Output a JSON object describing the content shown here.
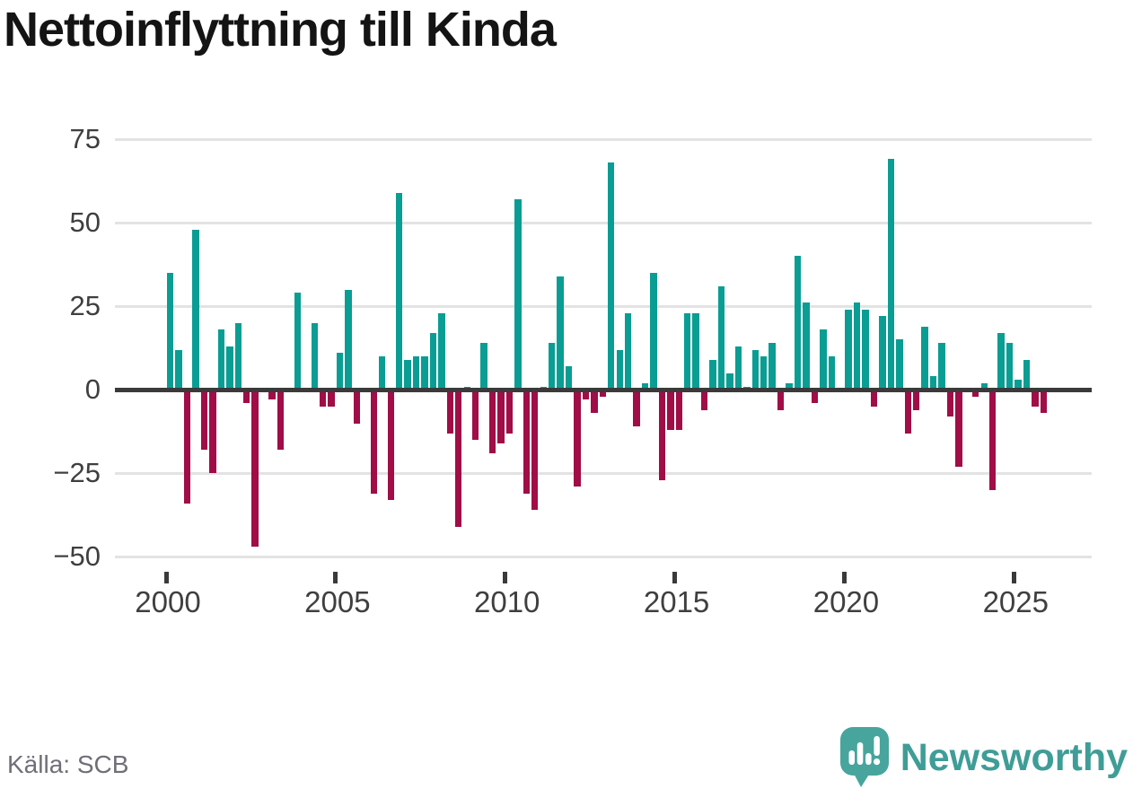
{
  "title": "Nettoinflyttning till Kinda",
  "source": "Källa: SCB",
  "branding": {
    "name": "Newsworthy",
    "icon": "newsworthy-logo-icon",
    "icon_color": "#47a59d",
    "text_color": "#3f9d97"
  },
  "chart_data": {
    "type": "bar",
    "title": "Nettoinflyttning till Kinda",
    "frequency": "quarterly",
    "grid": true,
    "legend": false,
    "xlabel": "",
    "ylabel": "",
    "ylim": [
      -50,
      75
    ],
    "y_ticks": [
      75,
      50,
      25,
      0,
      -25,
      -50
    ],
    "y_tick_labels": [
      "75",
      "50",
      "25",
      "0",
      "−25",
      "−50"
    ],
    "x_tick_years": [
      2000,
      2005,
      2010,
      2015,
      2020,
      2025
    ],
    "x_tick_labels": [
      "2000",
      "2005",
      "2010",
      "2015",
      "2020",
      "2025"
    ],
    "positive_color": "#0a9d93",
    "negative_color": "#a00d47",
    "years": [
      {
        "year": 2000,
        "values": [
          35,
          12,
          -34,
          48
        ]
      },
      {
        "year": 2001,
        "values": [
          -18,
          -25,
          18,
          13
        ]
      },
      {
        "year": 2002,
        "values": [
          20,
          -4,
          -47,
          0
        ]
      },
      {
        "year": 2003,
        "values": [
          -3,
          -18,
          0,
          29
        ]
      },
      {
        "year": 2004,
        "values": [
          0,
          20,
          -5,
          -5
        ]
      },
      {
        "year": 2005,
        "values": [
          11,
          30,
          -10,
          0
        ]
      },
      {
        "year": 2006,
        "values": [
          -31,
          10,
          -33,
          59
        ]
      },
      {
        "year": 2007,
        "values": [
          9,
          10,
          10,
          17
        ]
      },
      {
        "year": 2008,
        "values": [
          23,
          -13,
          -41,
          1
        ]
      },
      {
        "year": 2009,
        "values": [
          -15,
          14,
          -19,
          -16
        ]
      },
      {
        "year": 2010,
        "values": [
          -13,
          57,
          -31,
          -36
        ]
      },
      {
        "year": 2011,
        "values": [
          1,
          14,
          34,
          7
        ]
      },
      {
        "year": 2012,
        "values": [
          -29,
          -3,
          -7,
          -2
        ]
      },
      {
        "year": 2013,
        "values": [
          68,
          12,
          23,
          -11
        ]
      },
      {
        "year": 2014,
        "values": [
          2,
          35,
          -27,
          -12
        ]
      },
      {
        "year": 2015,
        "values": [
          -12,
          23,
          23,
          -6
        ]
      },
      {
        "year": 2016,
        "values": [
          9,
          31,
          5,
          13
        ]
      },
      {
        "year": 2017,
        "values": [
          1,
          12,
          10,
          14
        ]
      },
      {
        "year": 2018,
        "values": [
          -6,
          2,
          40,
          26
        ]
      },
      {
        "year": 2019,
        "values": [
          -4,
          18,
          10,
          0
        ]
      },
      {
        "year": 2020,
        "values": [
          24,
          26,
          24,
          -5
        ]
      },
      {
        "year": 2021,
        "values": [
          22,
          69,
          15,
          -13
        ]
      },
      {
        "year": 2022,
        "values": [
          -6,
          19,
          4,
          14
        ]
      },
      {
        "year": 2023,
        "values": [
          -8,
          -23,
          0,
          -2
        ]
      },
      {
        "year": 2024,
        "values": [
          2,
          -30,
          17,
          14
        ]
      },
      {
        "year": 2025,
        "values": [
          3,
          9,
          -5,
          -7
        ]
      }
    ]
  }
}
